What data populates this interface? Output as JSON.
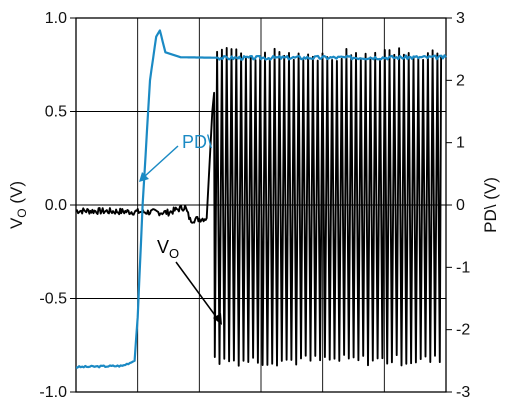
{
  "chart_data": {
    "type": "line",
    "title": "",
    "x_divisions": 6,
    "grid": true,
    "y_left": {
      "label_main": "V",
      "label_sub": "O",
      "label_unit": " (V)",
      "range": [
        -1.0,
        1.0
      ],
      "ticks": [
        "1.0",
        "0.5",
        "0.0",
        "-0.5",
        "-1.0"
      ],
      "tick_values": [
        1.0,
        0.5,
        0.0,
        -0.5,
        -1.0
      ]
    },
    "y_right": {
      "label": "PD\\ (V)",
      "range": [
        -3,
        3
      ],
      "ticks": [
        "3",
        "2",
        "1",
        "0",
        "-1",
        "-2",
        "-3"
      ],
      "tick_values": [
        3,
        2,
        1,
        0,
        -1,
        -2,
        -3
      ]
    },
    "series": [
      {
        "name": "PD\\",
        "axis": "right",
        "color": "#1b8ac4",
        "points": [
          [
            0.0,
            -2.6
          ],
          [
            0.75,
            -2.58
          ],
          [
            0.95,
            -2.5
          ],
          [
            1.0,
            -1.8
          ],
          [
            1.08,
            0.0
          ],
          [
            1.2,
            2.0
          ],
          [
            1.3,
            2.7
          ],
          [
            1.36,
            2.8
          ],
          [
            1.45,
            2.45
          ],
          [
            1.7,
            2.37
          ],
          [
            2.5,
            2.36
          ],
          [
            6.0,
            2.37
          ]
        ]
      },
      {
        "name": "V",
        "name_sub": "O",
        "axis": "left",
        "color": "#000000",
        "quiescent_points": [
          [
            0.0,
            -0.03
          ],
          [
            1.5,
            -0.04
          ],
          [
            1.77,
            -0.01
          ],
          [
            1.85,
            -0.08
          ],
          [
            2.12,
            -0.07
          ]
        ],
        "oscillation_start": 2.25,
        "oscillation_end": 5.9,
        "oscillation_cycles": 47,
        "oscillation_high": 0.84,
        "oscillation_low": -0.86
      }
    ],
    "annotations": [
      {
        "text": "PD\\",
        "series": "PD\\",
        "color": "#1b8ac4"
      },
      {
        "text": "V",
        "sub": "O",
        "series": "V",
        "color": "#000000"
      }
    ]
  }
}
